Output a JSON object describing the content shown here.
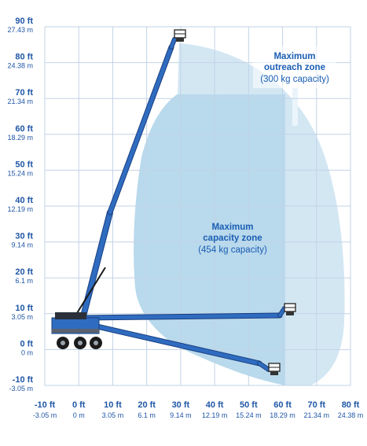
{
  "chart_data": {
    "type": "diagram",
    "title": "",
    "xlabel": "",
    "ylabel": "",
    "x_range_ft": [
      -10,
      80
    ],
    "y_range_ft": [
      -10,
      90
    ],
    "grid": true,
    "x_ticks": [
      {
        "ft": "-10 ft",
        "m": "-3.05 m"
      },
      {
        "ft": "0 ft",
        "m": "0 m"
      },
      {
        "ft": "10 ft",
        "m": "3.05 m"
      },
      {
        "ft": "20 ft",
        "m": "6.1 m"
      },
      {
        "ft": "30 ft",
        "m": "9.14 m"
      },
      {
        "ft": "40 ft",
        "m": "12.19 m"
      },
      {
        "ft": "50 ft",
        "m": "15.24 m"
      },
      {
        "ft": "60 ft",
        "m": "18.29 m"
      },
      {
        "ft": "70 ft",
        "m": "21.34 m"
      },
      {
        "ft": "80 ft",
        "m": "24.38 m"
      }
    ],
    "y_ticks": [
      {
        "ft": "90 ft",
        "m": "27.43 m"
      },
      {
        "ft": "80 ft",
        "m": "24.38 m"
      },
      {
        "ft": "70 ft",
        "m": "21.34 m"
      },
      {
        "ft": "60 ft",
        "m": "18.29 m"
      },
      {
        "ft": "50 ft",
        "m": "15.24 m"
      },
      {
        "ft": "40 ft",
        "m": "12.19 m"
      },
      {
        "ft": "30 ft",
        "m": "9.14 m"
      },
      {
        "ft": "20 ft",
        "m": "6.1 m"
      },
      {
        "ft": "10 ft",
        "m": "3.05 m"
      },
      {
        "ft": "0 ft",
        "m": "0 m"
      },
      {
        "ft": "-10 ft",
        "m": "-3.05 m"
      }
    ],
    "zones": [
      {
        "title_lines": [
          "Maximum",
          "outreach zone"
        ],
        "capacity": "(300 kg capacity)",
        "color": "#d3e7f3"
      },
      {
        "title_lines": [
          "Maximum",
          "capacity zone"
        ],
        "capacity": "(454 kg capacity)",
        "color": "#b9d9ec"
      }
    ],
    "colors": {
      "grid": "#c2d3e6",
      "axis_text": "#1f56a6",
      "boom": "#2f6cc0",
      "boom_dark": "#1a3f80",
      "zone_text": "#1a5db3"
    }
  }
}
